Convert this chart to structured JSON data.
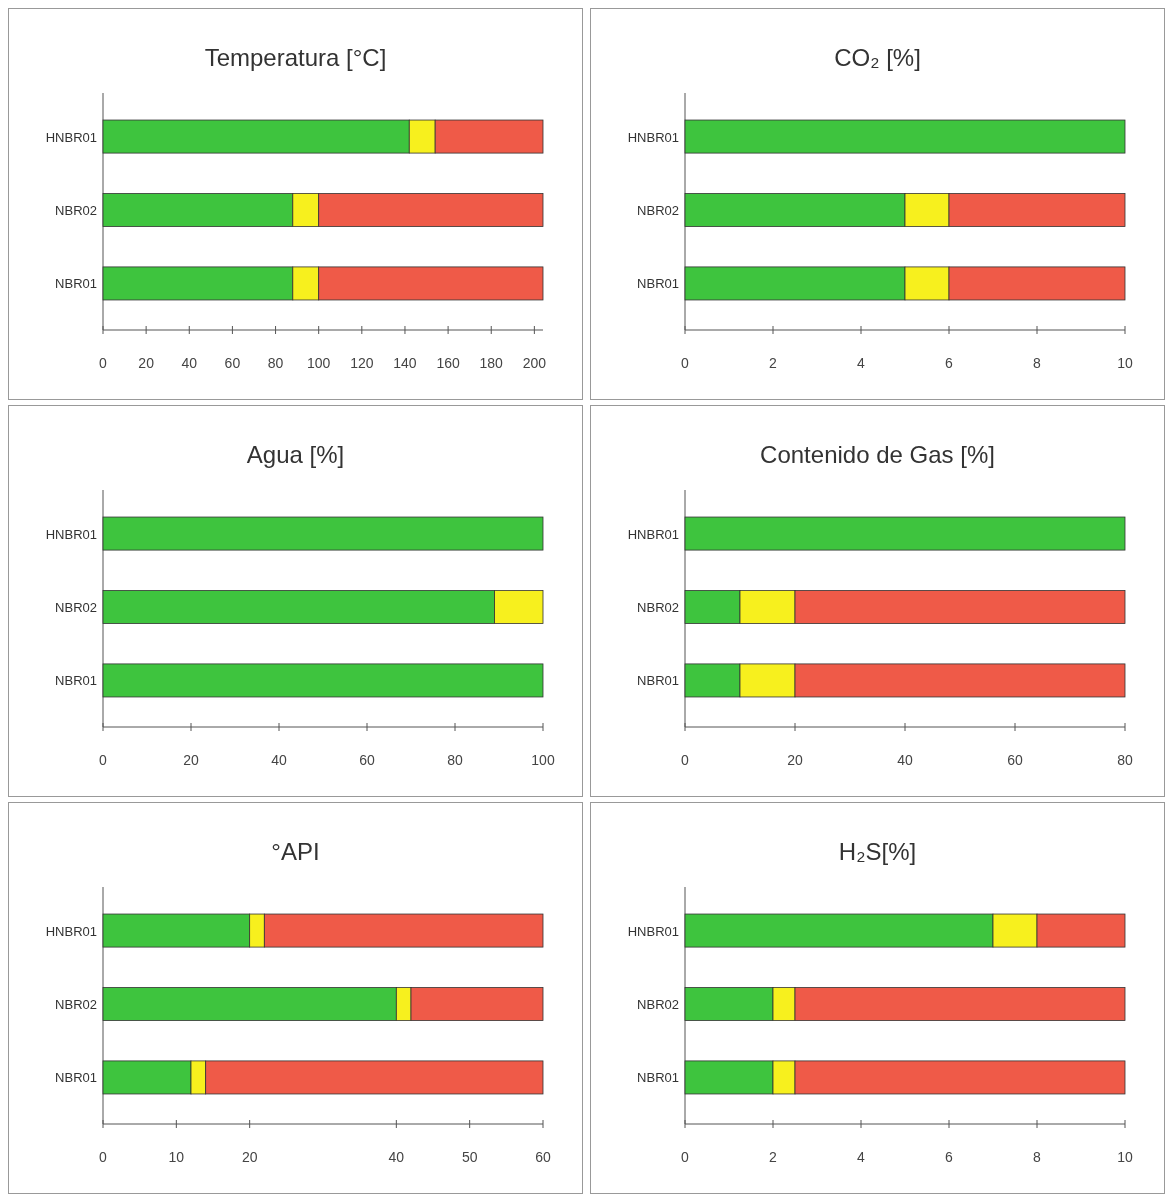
{
  "chart_data": [
    {
      "type": "bar",
      "title": "Temperatura [°C]",
      "orientation": "horizontal",
      "stacked": true,
      "categories": [
        "HNBR01",
        "NBR02",
        "NBR01"
      ],
      "xlim": [
        0,
        204
      ],
      "xticks": [
        0,
        20,
        40,
        60,
        80,
        100,
        120,
        140,
        160,
        180,
        200
      ],
      "series": [
        {
          "color": "#3ec43e",
          "values": [
            142,
            88,
            88
          ]
        },
        {
          "color": "#f7f01e",
          "values": [
            12,
            12,
            12
          ]
        },
        {
          "color": "#ef5a48",
          "values": [
            50,
            104,
            104
          ]
        }
      ]
    },
    {
      "type": "bar",
      "title": "CO₂ [%]",
      "orientation": "horizontal",
      "stacked": true,
      "categories": [
        "HNBR01",
        "NBR02",
        "NBR01"
      ],
      "xlim": [
        0,
        10
      ],
      "xticks": [
        0,
        2,
        4,
        6,
        8,
        10
      ],
      "series": [
        {
          "color": "#3ec43e",
          "values": [
            10,
            5,
            5
          ]
        },
        {
          "color": "#f7f01e",
          "values": [
            0,
            1,
            1
          ]
        },
        {
          "color": "#ef5a48",
          "values": [
            0,
            4,
            4
          ]
        }
      ]
    },
    {
      "type": "bar",
      "title": "Agua [%]",
      "orientation": "horizontal",
      "stacked": true,
      "categories": [
        "HNBR01",
        "NBR02",
        "NBR01"
      ],
      "xlim": [
        0,
        100
      ],
      "xticks": [
        0,
        20,
        40,
        60,
        80,
        100
      ],
      "series": [
        {
          "color": "#3ec43e",
          "values": [
            100,
            89,
            100
          ]
        },
        {
          "color": "#f7f01e",
          "values": [
            0,
            11,
            0
          ]
        }
      ]
    },
    {
      "type": "bar",
      "title": "Contenido de Gas [%]",
      "orientation": "horizontal",
      "stacked": true,
      "categories": [
        "HNBR01",
        "NBR02",
        "NBR01"
      ],
      "xlim": [
        0,
        80
      ],
      "xticks": [
        0,
        20,
        40,
        60,
        80
      ],
      "series": [
        {
          "color": "#3ec43e",
          "values": [
            80,
            10,
            10
          ]
        },
        {
          "color": "#f7f01e",
          "values": [
            0,
            10,
            10
          ]
        },
        {
          "color": "#ef5a48",
          "values": [
            0,
            60,
            60
          ]
        }
      ]
    },
    {
      "type": "bar",
      "title": "°API",
      "orientation": "horizontal",
      "stacked": true,
      "categories": [
        "HNBR01",
        "NBR02",
        "NBR01"
      ],
      "xlim": [
        0,
        60
      ],
      "xticks": [
        0,
        10,
        20,
        40,
        50,
        60
      ],
      "series": [
        {
          "color": "#3ec43e",
          "values": [
            20,
            40,
            12
          ]
        },
        {
          "color": "#f7f01e",
          "values": [
            2,
            2,
            2
          ]
        },
        {
          "color": "#ef5a48",
          "values": [
            38,
            18,
            46
          ]
        }
      ]
    },
    {
      "type": "bar",
      "title": "H₂S[%]",
      "orientation": "horizontal",
      "stacked": true,
      "categories": [
        "HNBR01",
        "NBR02",
        "NBR01"
      ],
      "xlim": [
        0,
        10
      ],
      "xticks": [
        0,
        2,
        4,
        6,
        8,
        10
      ],
      "series": [
        {
          "color": "#3ec43e",
          "values": [
            7,
            2,
            2
          ]
        },
        {
          "color": "#f7f01e",
          "values": [
            1,
            0.5,
            0.5
          ]
        },
        {
          "color": "#ef5a48",
          "values": [
            2,
            7.5,
            7.5
          ]
        }
      ]
    }
  ]
}
